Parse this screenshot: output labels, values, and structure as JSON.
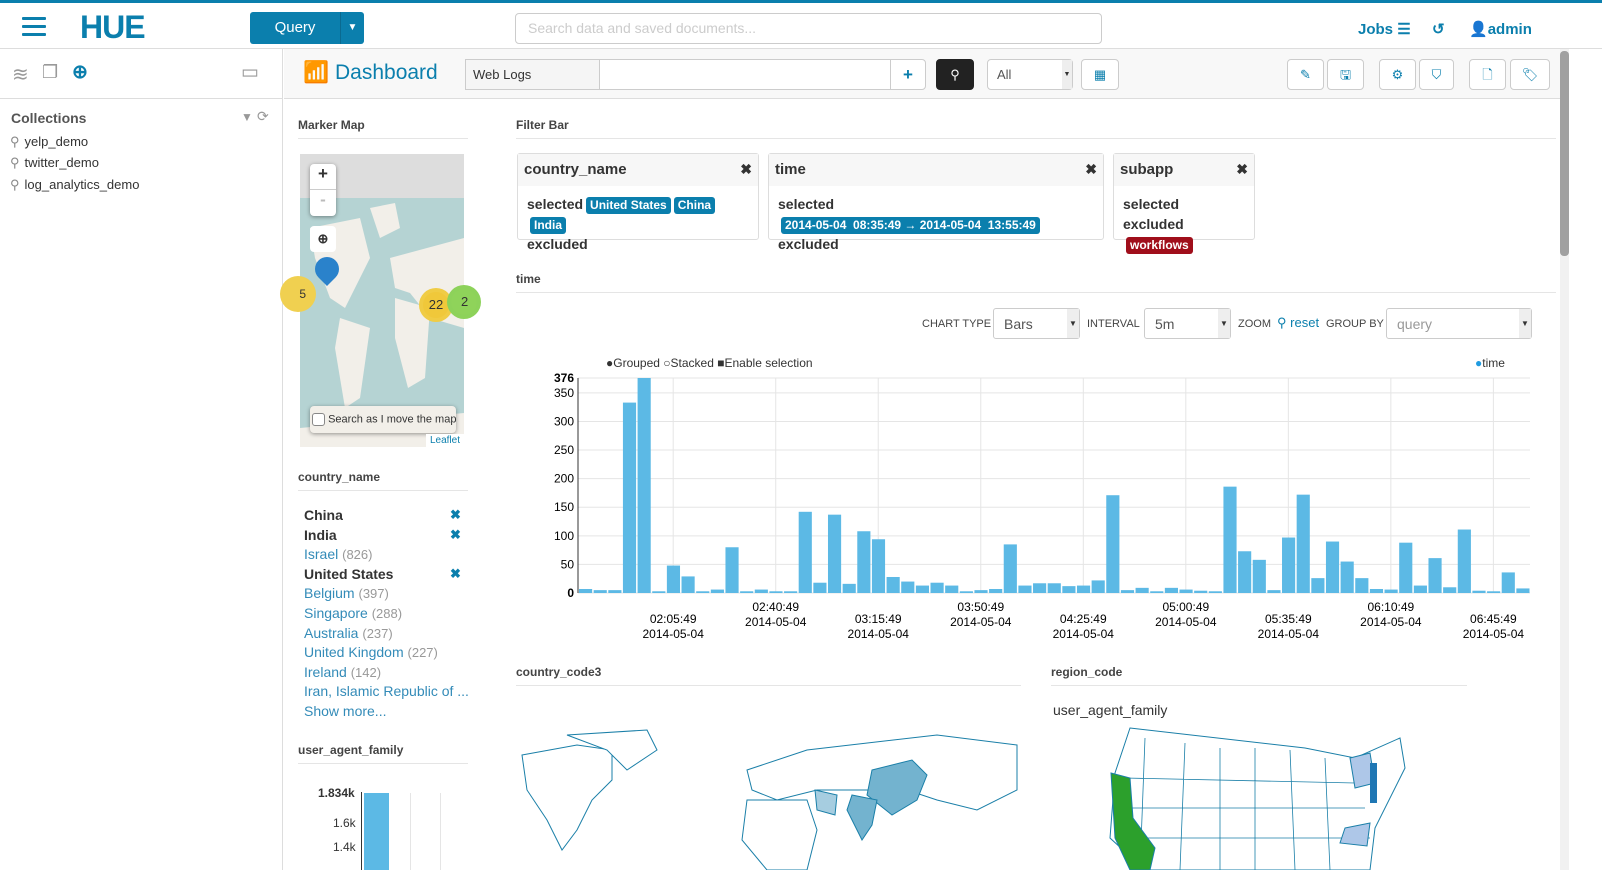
{
  "header": {
    "logo": "HUE",
    "query_button": "Query",
    "search_placeholder": "Search data and saved documents...",
    "jobs": "Jobs",
    "user": "admin"
  },
  "sidebar": {
    "section_title": "Collections",
    "collections": [
      "yelp_demo",
      "twitter_demo",
      "log_analytics_demo"
    ]
  },
  "toolbar": {
    "title": "Dashboard",
    "collection": "Web Logs",
    "query_value": "",
    "filter_select": "All"
  },
  "widgets": {
    "marker_map": {
      "title": "Marker Map",
      "clusters": [
        "5",
        "22",
        "2"
      ],
      "search_as_move": "Search as I move the map",
      "attribution": "Leaflet",
      "zoom_in": "+",
      "zoom_out": "-"
    },
    "filter_bar": {
      "title": "Filter Bar",
      "cards": [
        {
          "field": "country_name",
          "selected_label": "selected",
          "excluded_label": "excluded",
          "selected": [
            "United States",
            "China",
            "India"
          ],
          "excluded": []
        },
        {
          "field": "time",
          "selected_label": "selected",
          "excluded_label": "excluded",
          "selected": [
            "2014-05-04  08:35:49 → 2014-05-04  13:55:49"
          ],
          "excluded": []
        },
        {
          "field": "subapp",
          "selected_label": "selected",
          "excluded_label": "excluded",
          "selected": [],
          "excluded": [
            "workflows"
          ]
        }
      ]
    },
    "country_name": {
      "title": "country_name",
      "items": [
        {
          "label": "China",
          "selected": true
        },
        {
          "label": "India",
          "selected": true
        },
        {
          "label": "Israel",
          "count": "(826)"
        },
        {
          "label": "United States",
          "selected": true
        },
        {
          "label": "Belgium",
          "count": "(397)"
        },
        {
          "label": "Singapore",
          "count": "(288)"
        },
        {
          "label": "Australia",
          "count": "(237)"
        },
        {
          "label": "United Kingdom",
          "count": "(227)"
        },
        {
          "label": "Ireland",
          "count": "(142)"
        },
        {
          "label": "Iran, Islamic Republic of ..."
        }
      ],
      "show_more": "Show more..."
    },
    "user_agent_family": {
      "title": "user_agent_family",
      "ticks": [
        "1.834k",
        "1.6k",
        "1.4k"
      ]
    },
    "time": {
      "title": "time",
      "chart_type_label": "CHART TYPE",
      "chart_type": "Bars",
      "interval_label": "INTERVAL",
      "interval": "5m",
      "zoom_label": "ZOOM",
      "reset": "reset",
      "group_by_label": "GROUP BY",
      "group_by": "query",
      "modes": [
        "Grouped",
        "Stacked",
        "Enable selection"
      ]
    },
    "country_code3": {
      "title": "country_code3"
    },
    "region_code": {
      "title": "region_code",
      "subtitle": "user_agent_family"
    }
  },
  "colors": {
    "brand": "#0b7fad",
    "bar": "#5cb9e5",
    "excluded": "#a00e1b",
    "california": "#2ca02c"
  },
  "chart_data": {
    "type": "bar",
    "legend": [
      "time"
    ],
    "legend_position": "top-right",
    "grid": true,
    "ylim": [
      0,
      376
    ],
    "y_ticks": [
      "0",
      "50",
      "100",
      "150",
      "200",
      "250",
      "300",
      "350",
      "376"
    ],
    "x_ticks": [
      [
        "02:05:49",
        "2014-05-04"
      ],
      [
        "02:40:49",
        "2014-05-04"
      ],
      [
        "03:15:49",
        "2014-05-04"
      ],
      [
        "03:50:49",
        "2014-05-04"
      ],
      [
        "04:25:49",
        "2014-05-04"
      ],
      [
        "05:00:49",
        "2014-05-04"
      ],
      [
        "05:35:49",
        "2014-05-04"
      ],
      [
        "06:10:49",
        "2014-05-04"
      ],
      [
        "06:45:49",
        "2014-05-04"
      ]
    ],
    "interval": "5m",
    "values": [
      7,
      5,
      5,
      333,
      376,
      3,
      48,
      29,
      3,
      6,
      80,
      3,
      6,
      3,
      3,
      142,
      18,
      137,
      16,
      108,
      94,
      28,
      20,
      13,
      18,
      13,
      3,
      5,
      7,
      85,
      13,
      17,
      17,
      12,
      13,
      22,
      171,
      5,
      9,
      3,
      9,
      6,
      4,
      3,
      186,
      73,
      58,
      5,
      97,
      172,
      26,
      90,
      55,
      26,
      7,
      6,
      88,
      13,
      61,
      10,
      111,
      4,
      3,
      36,
      8
    ]
  }
}
